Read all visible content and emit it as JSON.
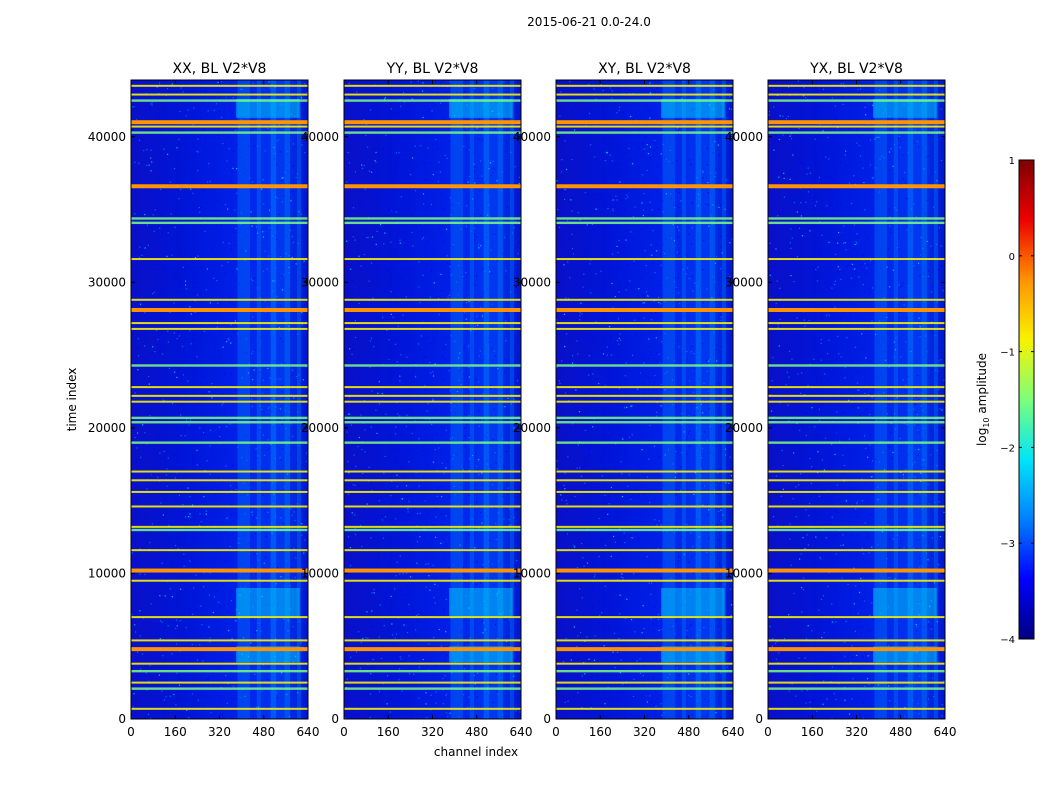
{
  "suptitle": "2015-06-21 0.0-24.0",
  "colors": {
    "background": "#00009a",
    "colormap": [
      "#00007f",
      "#0000ff",
      "#0080ff",
      "#00e5f7",
      "#7dff7a",
      "#f8f200",
      "#ff9300",
      "#ee0000",
      "#7f0000"
    ],
    "axis_frame": "#000000"
  },
  "chart_data": [
    {
      "type": "heatmap",
      "title": "XX, BL V2*V8",
      "xlabel": "",
      "ylabel": "time index",
      "x_ticks": [
        0,
        160,
        320,
        480,
        640
      ],
      "y_ticks": [
        0,
        10000,
        20000,
        30000,
        40000
      ],
      "xlim": [
        0,
        640
      ],
      "ylim": [
        0,
        43900
      ]
    },
    {
      "type": "heatmap",
      "title": "YY, BL V2*V8",
      "xlabel": "channel index",
      "ylabel": "",
      "x_ticks": [
        0,
        160,
        320,
        480,
        640
      ],
      "y_ticks": [
        0,
        10000,
        20000,
        30000,
        40000
      ],
      "xlim": [
        0,
        640
      ],
      "ylim": [
        0,
        43900
      ]
    },
    {
      "type": "heatmap",
      "title": "XY, BL V2*V8",
      "xlabel": "",
      "ylabel": "",
      "x_ticks": [
        0,
        160,
        320,
        480,
        640
      ],
      "y_ticks": [
        0,
        10000,
        20000,
        30000,
        40000
      ],
      "xlim": [
        0,
        640
      ],
      "ylim": [
        0,
        43900
      ]
    },
    {
      "type": "heatmap",
      "title": "YX, BL V2*V8",
      "xlabel": "",
      "ylabel": "",
      "x_ticks": [
        0,
        160,
        320,
        480,
        640
      ],
      "y_ticks": [
        0,
        10000,
        20000,
        30000,
        40000
      ],
      "xlim": [
        0,
        640
      ],
      "ylim": [
        0,
        43900
      ]
    }
  ],
  "colorbar": {
    "label": "log10 amplitude",
    "label_base": "log",
    "label_sub": "10",
    "label_rest": " amplitude",
    "range": [
      -4,
      1
    ],
    "ticks": [
      1,
      0,
      -1,
      -2,
      -3,
      -4
    ],
    "tick_labels": [
      "1",
      "0",
      "−1",
      "−2",
      "−3",
      "−4"
    ]
  },
  "features": {
    "strong_rows": [
      41000,
      36600,
      28100,
      10200,
      4800
    ],
    "medium_rows": [
      43500,
      42900,
      40700,
      31600,
      28800,
      27200,
      26800,
      22800,
      22200,
      21800,
      17000,
      16400,
      15600,
      14600,
      13200,
      11600,
      9500,
      7000,
      5400,
      3800,
      2500,
      700
    ],
    "green_rows": [
      42500,
      40300,
      34400,
      34100,
      24300,
      20700,
      20400,
      19000,
      13000,
      3300,
      2100
    ]
  }
}
